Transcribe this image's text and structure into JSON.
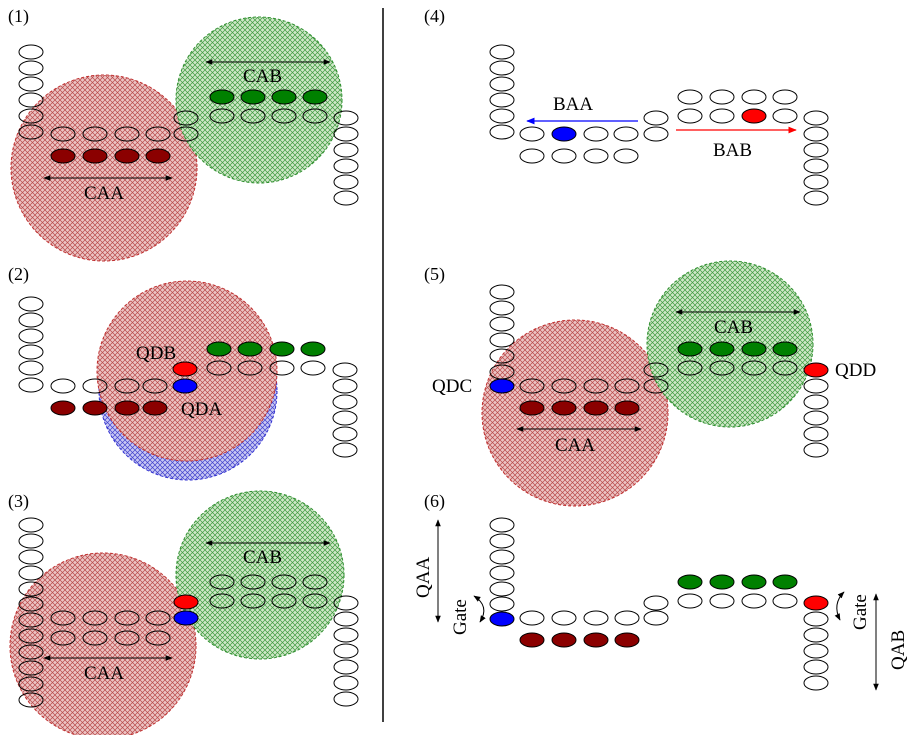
{
  "panel_labels": [
    "(1)",
    "(2)",
    "(3)",
    "(4)",
    "(5)",
    "(6)"
  ],
  "labels": {
    "p1_cab": "CAB",
    "p1_caa": "CAA",
    "p2_qdb": "QDB",
    "p2_qda": "QDA",
    "p3_cab": "CAB",
    "p3_caa": "CAA",
    "p4_baa": "BAA",
    "p4_bab": "BAB",
    "p5_cab": "CAB",
    "p5_caa": "CAA",
    "p5_qdc": "QDC",
    "p5_qdd": "QDD",
    "p6_qaa": "QAA",
    "p6_gate_left": "Gate",
    "p6_gate_right": "Gate",
    "p6_qab": "QAB"
  },
  "colors": {
    "red_region": "#e3a6a6",
    "red_region_stroke": "#c03030",
    "green_region": "#b8ddb0",
    "green_region_stroke": "#2f8f2f",
    "blue_region": "#a8a8f0",
    "blue_region_stroke": "#3030d0",
    "dark_red_dot": "#8b0000",
    "green_dot": "#008000",
    "red_dot": "#ff0000",
    "blue_dot": "#0000ff",
    "arrow_blue": "#0000ff",
    "arrow_red": "#ff0000"
  }
}
